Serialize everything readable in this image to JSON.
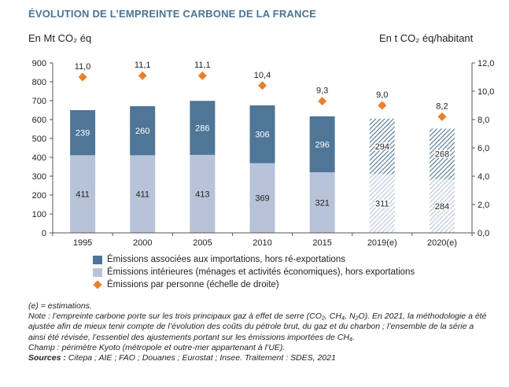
{
  "title": "ÉVOLUTION DE L’EMPREINTE CARBONE DE LA FRANCE",
  "y_left_unit": "En Mt CO₂ éq",
  "y_right_unit": "En t CO₂ éq/habitant",
  "colors": {
    "title": "#4b7393",
    "importations": "#4f7597",
    "interieures": "#b7c3d9",
    "par_personne": "#e8802d",
    "axis": "#555555"
  },
  "chart_data": {
    "type": "bar",
    "stacked": true,
    "title": "ÉVOLUTION DE L’EMPREINTE CARBONE DE LA FRANCE",
    "categories": [
      "1995",
      "2000",
      "2005",
      "2010",
      "2015",
      "2019(e)",
      "2020(e)"
    ],
    "estimated": [
      false,
      false,
      false,
      false,
      false,
      true,
      true
    ],
    "series": [
      {
        "name": "Émissions intérieures (ménages et activités économiques), hors exportations",
        "axis": "left",
        "values": [
          411,
          411,
          413,
          369,
          321,
          311,
          284
        ]
      },
      {
        "name": "Émissions associées aux importations, hors ré-exportations",
        "axis": "left",
        "values": [
          239,
          260,
          286,
          306,
          296,
          294,
          268
        ]
      },
      {
        "name": "Émissions par personne (échelle de droite)",
        "axis": "right",
        "type": "scatter",
        "values": [
          11.0,
          11.1,
          11.1,
          10.4,
          9.3,
          9.0,
          8.2
        ]
      }
    ],
    "left_axis": {
      "label": "En Mt CO₂ éq",
      "ylim": [
        0,
        900
      ],
      "ticks": [
        "0",
        "100",
        "200",
        "300",
        "400",
        "500",
        "600",
        "700",
        "800",
        "900"
      ]
    },
    "right_axis": {
      "label": "En t CO₂ éq/habitant",
      "ylim": [
        0,
        12
      ],
      "ticks": [
        "0,0",
        "2,0",
        "4,0",
        "6,0",
        "8,0",
        "10,0",
        "12,0"
      ]
    },
    "value_labels_person": [
      "11,0",
      "11,1",
      "11,1",
      "10,4",
      "9,3",
      "9,0",
      "8,2"
    ],
    "grid": false,
    "legend_position": "bottom"
  },
  "legend": [
    {
      "label": "Émissions associées aux importations, hors ré-exportations"
    },
    {
      "label": "Émissions intérieures (ménages et activités économiques), hors exportations"
    },
    {
      "label": "Émissions par personne (échelle de droite)"
    }
  ],
  "notes": {
    "estimations": "(e) = estimations.",
    "note": "Note : l’empreinte carbone porte sur les trois principaux gaz à effet de serre (CO₂, CH₄, N₂O). En 2021, la méthodologie a été ajustée afin de mieux tenir compte de l’évolution des coûts du pétrole brut, du gaz et du charbon ; l’ensemble de la série a ainsi été révisée, l’essentiel des ajustements portant sur les émissions importées de CH₄.",
    "champ": "Champ : périmètre Kyoto (métropole et outre-mer appartenant à l’UE).",
    "sources_label": "Sources :",
    "sources": " Citepa ; AIE ; FAO ; Douanes ; Eurostat ; Insee. Traitement : SDES, 2021"
  }
}
